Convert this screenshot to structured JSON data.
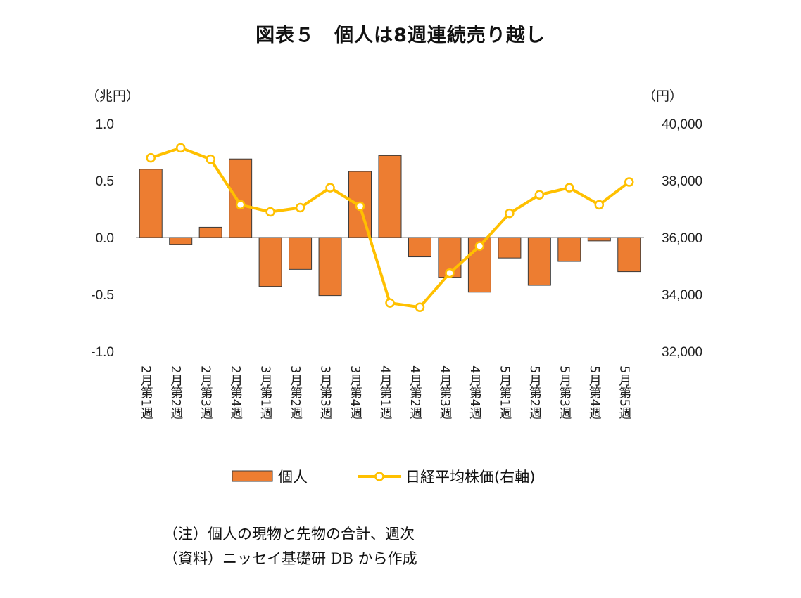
{
  "title": "図表５　個人は8週連続売り越し",
  "chart_data": {
    "type": "bar+line",
    "title": "図表５　個人は8週連続売り越し",
    "categories": [
      "2月第1週",
      "2月第2週",
      "2月第3週",
      "2月第4週",
      "3月第1週",
      "3月第2週",
      "3月第3週",
      "3月第4週",
      "4月第1週",
      "4月第2週",
      "4月第3週",
      "4月第4週",
      "5月第1週",
      "5月第2週",
      "5月第3週",
      "5月第4週",
      "5月第5週"
    ],
    "series": [
      {
        "name": "個人",
        "type": "bar",
        "axis": "left",
        "color": "#ED7D31",
        "values": [
          0.6,
          -0.06,
          0.09,
          0.69,
          -0.43,
          -0.28,
          -0.51,
          0.58,
          0.72,
          -0.17,
          -0.35,
          -0.48,
          -0.18,
          -0.42,
          -0.21,
          -0.03,
          -0.3
        ]
      },
      {
        "name": "日経平均株価(右軸)",
        "type": "line",
        "axis": "right",
        "color": "#FFC000",
        "values": [
          38800,
          39150,
          38750,
          37150,
          36900,
          37050,
          37750,
          37100,
          33700,
          33550,
          34750,
          35700,
          36850,
          37500,
          37750,
          37150,
          37950
        ]
      }
    ],
    "y_left": {
      "unit": "（兆円）",
      "ylim": [
        -1.0,
        1.0
      ],
      "ticks": [
        "1.0",
        "0.5",
        "0.0",
        "-0.5",
        "-1.0"
      ]
    },
    "y_right": {
      "unit": "（円）",
      "ylim": [
        32000,
        40000
      ],
      "ticks": [
        "40,000",
        "38,000",
        "36,000",
        "34,000",
        "32,000"
      ]
    },
    "grid": false,
    "legend_position": "bottom"
  },
  "notes": [
    "（注）個人の現物と先物の合計、週次",
    "（資料）ニッセイ基礎研 DB から作成"
  ]
}
